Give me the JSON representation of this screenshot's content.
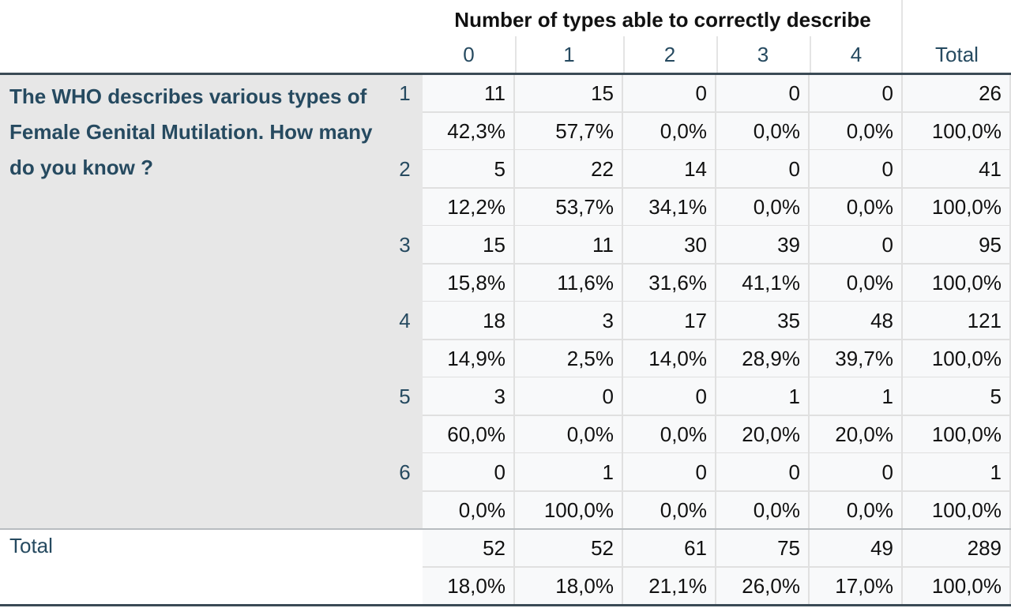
{
  "table": {
    "title": "Number of types able to correctly describe",
    "columns": [
      "0",
      "1",
      "2",
      "3",
      "4",
      "Total"
    ],
    "row_variable_label": "The WHO describes various types of Female Genital Mutilation. How many do you know ?",
    "total_label": "Total",
    "rows": [
      {
        "label": "1",
        "counts": [
          "11",
          "15",
          "0",
          "0",
          "0",
          "26"
        ],
        "percents": [
          "42,3%",
          "57,7%",
          "0,0%",
          "0,0%",
          "0,0%",
          "100,0%"
        ]
      },
      {
        "label": "2",
        "counts": [
          "5",
          "22",
          "14",
          "0",
          "0",
          "41"
        ],
        "percents": [
          "12,2%",
          "53,7%",
          "34,1%",
          "0,0%",
          "0,0%",
          "100,0%"
        ]
      },
      {
        "label": "3",
        "counts": [
          "15",
          "11",
          "30",
          "39",
          "0",
          "95"
        ],
        "percents": [
          "15,8%",
          "11,6%",
          "31,6%",
          "41,1%",
          "0,0%",
          "100,0%"
        ]
      },
      {
        "label": "4",
        "counts": [
          "18",
          "3",
          "17",
          "35",
          "48",
          "121"
        ],
        "percents": [
          "14,9%",
          "2,5%",
          "14,0%",
          "28,9%",
          "39,7%",
          "100,0%"
        ]
      },
      {
        "label": "5",
        "counts": [
          "3",
          "0",
          "0",
          "1",
          "1",
          "5"
        ],
        "percents": [
          "60,0%",
          "0,0%",
          "0,0%",
          "20,0%",
          "20,0%",
          "100,0%"
        ]
      },
      {
        "label": "6",
        "counts": [
          "0",
          "1",
          "0",
          "0",
          "0",
          "1"
        ],
        "percents": [
          "0,0%",
          "100,0%",
          "0,0%",
          "0,0%",
          "0,0%",
          "100,0%"
        ]
      }
    ],
    "total_row": {
      "counts": [
        "52",
        "52",
        "61",
        "75",
        "49",
        "289"
      ],
      "percents": [
        "18,0%",
        "18,0%",
        "21,1%",
        "26,0%",
        "17,0%",
        "100,0%"
      ]
    }
  }
}
